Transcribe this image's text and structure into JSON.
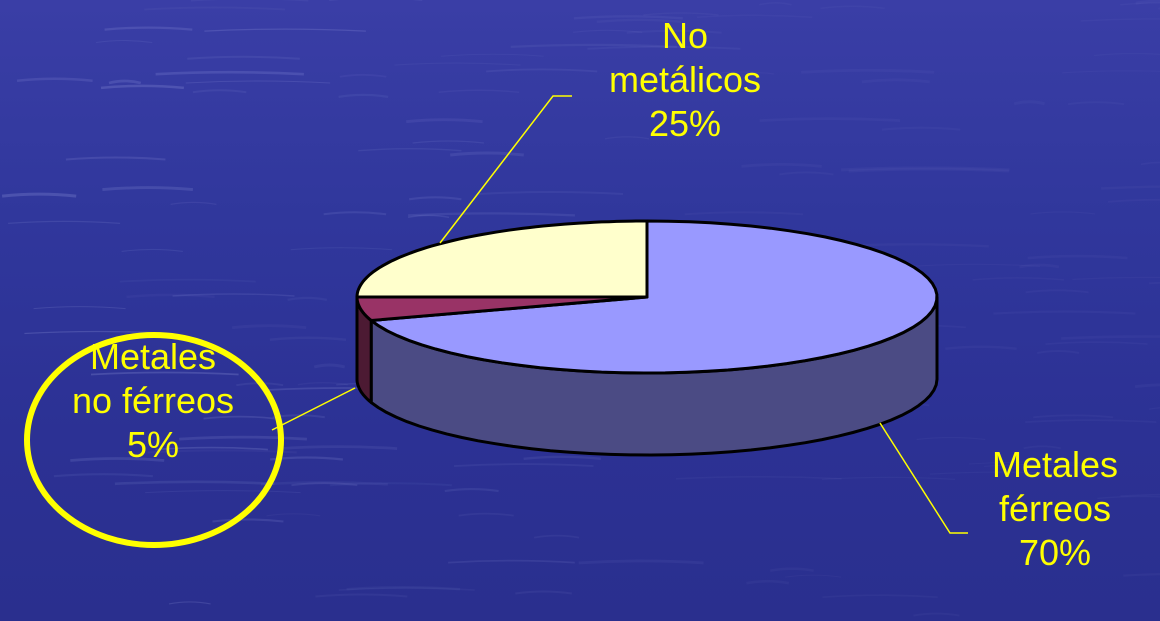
{
  "chart_data": {
    "type": "pie",
    "style": "3d",
    "slices": [
      {
        "label_lines": [
          "Metales",
          "férreos",
          "70%"
        ],
        "value": 70,
        "color": "#9999ff",
        "side_color": "#4b4b84"
      },
      {
        "label_lines": [
          "Metales",
          "no férreos",
          "5%"
        ],
        "value": 5,
        "color": "#993366",
        "side_color": "#4c1a33",
        "highlighted": true
      },
      {
        "label_lines": [
          "No",
          "metálicos",
          "25%"
        ],
        "value": 25,
        "color": "#ffffcc",
        "side_color": "#7f7f66"
      }
    ],
    "label_color": "#ffff00",
    "highlight_color": "#ffff00"
  }
}
